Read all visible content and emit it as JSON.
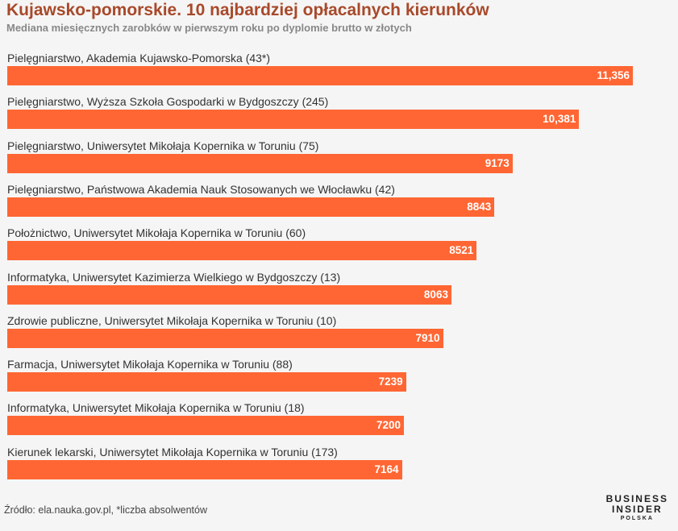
{
  "title": "Kujawsko-pomorskie. 10 najbardziej opłacalnych kierunków",
  "subtitle": "Mediana miesięcznych zarobków w pierwszym roku po dyplomie brutto w złotych",
  "source": "Źródło: ela.nauka.gov.pl, *liczba absolwentów",
  "logo": {
    "line1": "BUSINESS",
    "line2": "INSIDER",
    "line3": "POLSKA"
  },
  "colors": {
    "bar": "#ff6633",
    "title": "#a8492a",
    "background": "#f5f5f5"
  },
  "chart_data": {
    "type": "bar",
    "orientation": "horizontal",
    "categories": [
      "Pielęgniarstwo, Akademia Kujawsko-Pomorska (43*)",
      "Pielęgniarstwo, Wyższa Szkoła Gospodarki w Bydgoszczy (245)",
      "Pielęgniarstwo, Uniwersytet Mikołaja Kopernika w Toruniu (75)",
      "Pielęgniarstwo, Państwowa Akademia Nauk Stosowanych we Włocławku (42)",
      "Położnictwo, Uniwersytet Mikołaja Kopernika w Toruniu (60)",
      "Informatyka, Uniwersytet Kazimierza Wielkiego w Bydgoszczy (13)",
      "Zdrowie publiczne, Uniwersytet Mikołaja Kopernika w Toruniu (10)",
      "Farmacja, Uniwersytet Mikołaja Kopernika w Toruniu (88)",
      "Informatyka, Uniwersytet Mikołaja Kopernika w Toruniu (18)",
      "Kierunek lekarski, Uniwersytet Mikołaja Kopernika w Toruniu (173)"
    ],
    "values": [
      11356,
      10381,
      9173,
      8843,
      8521,
      8063,
      7910,
      7239,
      7200,
      7164
    ],
    "value_labels": [
      "11,356",
      "10,381",
      "9173",
      "8843",
      "8521",
      "8063",
      "7910",
      "7239",
      "7200",
      "7164"
    ],
    "xlim": [
      0,
      11356
    ],
    "grid": false,
    "legend": "none"
  }
}
